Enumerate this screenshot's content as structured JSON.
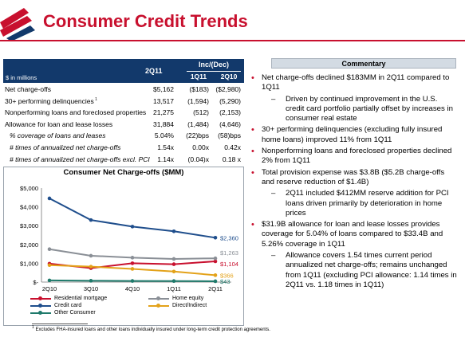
{
  "title": "Consumer Credit Trends",
  "table": {
    "header": {
      "units": "$ in millions",
      "col_2q11": "2Q11",
      "group": "Inc/(Dec)",
      "col_1q11": "1Q11",
      "col_2q10": "2Q10"
    },
    "rows": [
      {
        "label": "Net charge-offs",
        "v1": "$5,162",
        "v2": "($183)",
        "v3": "($2,980)",
        "sup": "",
        "indent": false
      },
      {
        "label": "30+ performing delinquencies",
        "v1": "13,517",
        "v2": "(1,594)",
        "v3": "(5,290)",
        "sup": "1",
        "indent": false
      },
      {
        "label": "Nonperforming loans and foreclosed properties",
        "v1": "21,275",
        "v2": "(512)",
        "v3": "(2,153)",
        "sup": "",
        "indent": false
      },
      {
        "label": "Allowance for loan and lease losses",
        "v1": "31,884",
        "v2": "(1,484)",
        "v3": "(4,646)",
        "sup": "",
        "indent": false
      },
      {
        "label": "% coverage of loans and leases",
        "v1": "5.04%",
        "v2": "(22)bps",
        "v3": "(58)bps",
        "sup": "",
        "indent": true
      },
      {
        "label": "# times of annualized net charge-offs",
        "v1": "1.54x",
        "v2": "0.00x",
        "v3": "0.42x",
        "sup": "",
        "indent": true
      },
      {
        "label": "# times of annualized net charge-offs excl. PCI",
        "v1": "1.14x",
        "v2": "(0.04)x",
        "v3": "0.18 x",
        "sup": "",
        "indent": true
      }
    ]
  },
  "chart_data": {
    "type": "line",
    "title": "Consumer Net Charge-offs ($MM)",
    "categories": [
      "2Q10",
      "3Q10",
      "4Q10",
      "1Q11",
      "2Q11"
    ],
    "ylim": [
      0,
      5000
    ],
    "yticks": [
      "$-",
      "$1,000",
      "$2,000",
      "$3,000",
      "$4,000",
      "$5,000"
    ],
    "series": [
      {
        "name": "Residential mortgage",
        "color": "#c8102e",
        "values": [
          980,
          740,
          1000,
          950,
          1104
        ],
        "end_label": "$1,104"
      },
      {
        "name": "Home equity",
        "color": "#8a8f96",
        "values": [
          1750,
          1400,
          1300,
          1230,
          1263
        ],
        "end_label": "$1,263"
      },
      {
        "name": "Credit card",
        "color": "#1f4e8c",
        "values": [
          4450,
          3300,
          2950,
          2700,
          2360
        ],
        "end_label": "$2,360"
      },
      {
        "name": "Direct/Indirect",
        "color": "#e3a21a",
        "values": [
          900,
          820,
          700,
          560,
          366
        ],
        "end_label": "$366"
      },
      {
        "name": "Other Consumer",
        "color": "#1f7a6b",
        "values": [
          90,
          70,
          60,
          55,
          43
        ],
        "end_label": "$43"
      }
    ]
  },
  "commentary": {
    "heading": "Commentary",
    "items": [
      {
        "text": "Net charge-offs declined $183MM in 2Q11 compared to 1Q11",
        "subs": [
          "Driven by continued improvement in the U.S. credit card portfolio partially offset by increases in consumer real estate"
        ]
      },
      {
        "text": "30+ performing delinquencies (excluding fully insured home loans) improved 11% from 1Q11",
        "subs": []
      },
      {
        "text": "Nonperforming loans and foreclosed properties declined 2% from 1Q11",
        "subs": []
      },
      {
        "text": "Total provision expense was $3.8B ($5.2B charge-offs and reserve reduction of $1.4B)",
        "subs": [
          "2Q11 included $412MM reserve addition for PCI loans driven primarily by deterioration in home prices"
        ]
      },
      {
        "text": "$31.9B allowance for loan and lease losses provides coverage for 5.04% of loans compared to $33.4B and 5.26% coverage in 1Q11",
        "subs": [
          "Allowance covers 1.54 times current period annualized net charge-offs; remains unchanged from 1Q11 (excluding PCI allowance: 1.14 times in 2Q11 vs. 1.18 times in 1Q11)"
        ]
      }
    ]
  },
  "footnote": {
    "marker": "1",
    "text": "Excludes FHA-insured loans and other loans individually insured under long-term credit protection agreements."
  }
}
